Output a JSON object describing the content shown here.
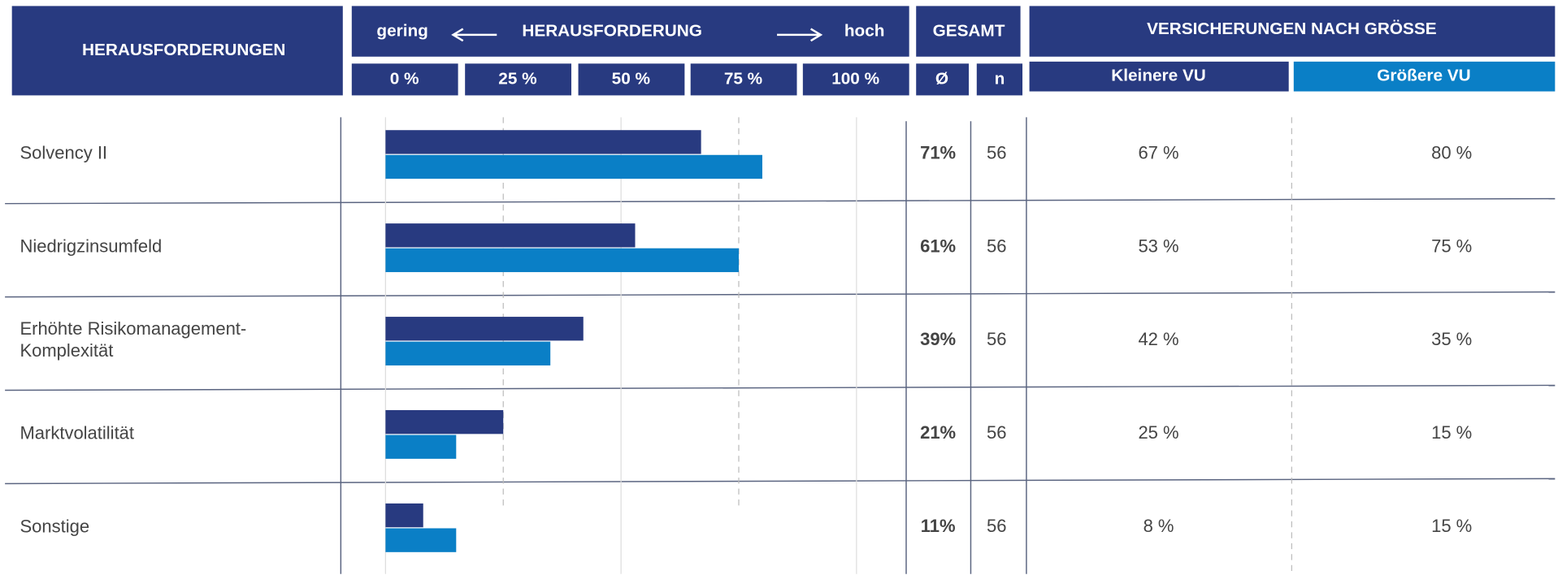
{
  "chart_data": {
    "type": "bar",
    "header": {
      "col1": "HERAUSFORDERUNGEN",
      "low": "gering",
      "axis": "HERAUSFORDERUNG",
      "high": "hoch",
      "total": "GESAMT",
      "avg": "Ø",
      "n": "n",
      "group": "VERSICHERUNGEN NACH GRÖSSE"
    },
    "categories": [
      "Solvency II",
      "Niedrigzinsumfeld",
      "Erhöhte Risikomanagement-\nKomplexität",
      "Marktvolatilität",
      "Sonstige"
    ],
    "series": [
      {
        "name": "Kleinere VU",
        "color": "#283a80",
        "values": [
          67,
          53,
          42,
          25,
          8
        ],
        "value_labels": [
          "67 %",
          "53 %",
          "42 %",
          "25 %",
          "8 %"
        ]
      },
      {
        "name": "Größere VU",
        "color": "#0a7fc6",
        "values": [
          80,
          75,
          35,
          15,
          15
        ],
        "value_labels": [
          "80 %",
          "75 %",
          "35 %",
          "15 %",
          "15 %"
        ]
      }
    ],
    "gesamt": {
      "values": [
        71,
        61,
        39,
        21,
        11
      ],
      "value_labels": [
        "71%",
        "61%",
        "39%",
        "21%",
        "11%"
      ]
    },
    "n": [
      56,
      56,
      56,
      56,
      56
    ],
    "xlim": [
      0,
      100
    ],
    "xticks": [
      {
        "value": 0,
        "label": "0 %"
      },
      {
        "value": 25,
        "label": "25 %"
      },
      {
        "value": 50,
        "label": "50 %"
      },
      {
        "value": 75,
        "label": "75 %"
      },
      {
        "value": 100,
        "label": "100 %"
      }
    ]
  }
}
